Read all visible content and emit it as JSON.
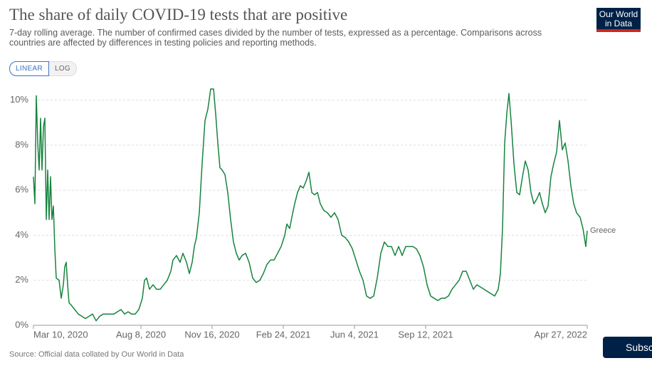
{
  "chart_data": {
    "type": "line",
    "title": "The share of daily COVID-19 tests that are positive",
    "subtitle": "7-day rolling average. The number of confirmed cases divided by the number of tests, expressed as a percentage. Comparisons across countries are affected by differences in testing policies and reporting methods.",
    "x": [
      "2020-03-10",
      "2020-03-12",
      "2020-03-14",
      "2020-03-16",
      "2020-03-18",
      "2020-03-20",
      "2020-03-22",
      "2020-03-24",
      "2020-03-26",
      "2020-03-28",
      "2020-03-30",
      "2020-04-01",
      "2020-04-03",
      "2020-04-05",
      "2020-04-07",
      "2020-04-09",
      "2020-04-11",
      "2020-04-15",
      "2020-04-18",
      "2020-04-21",
      "2020-04-23",
      "2020-04-25",
      "2020-04-27",
      "2020-04-29",
      "2020-05-02",
      "2020-05-07",
      "2020-05-12",
      "2020-05-17",
      "2020-05-22",
      "2020-05-27",
      "2020-06-01",
      "2020-06-06",
      "2020-06-11",
      "2020-06-16",
      "2020-06-21",
      "2020-06-26",
      "2020-07-01",
      "2020-07-06",
      "2020-07-11",
      "2020-07-16",
      "2020-07-21",
      "2020-07-26",
      "2020-07-31",
      "2020-08-05",
      "2020-08-10",
      "2020-08-13",
      "2020-08-16",
      "2020-08-20",
      "2020-08-25",
      "2020-08-30",
      "2020-09-04",
      "2020-09-09",
      "2020-09-14",
      "2020-09-19",
      "2020-09-22",
      "2020-09-27",
      "2020-10-02",
      "2020-10-06",
      "2020-10-11",
      "2020-10-15",
      "2020-10-19",
      "2020-10-22",
      "2020-10-25",
      "2020-10-29",
      "2020-11-02",
      "2020-11-06",
      "2020-11-10",
      "2020-11-14",
      "2020-11-18",
      "2020-11-21",
      "2020-11-24",
      "2020-11-27",
      "2020-11-30",
      "2020-12-04",
      "2020-12-08",
      "2020-12-12",
      "2020-12-16",
      "2020-12-20",
      "2020-12-24",
      "2020-12-28",
      "2021-01-02",
      "2021-01-07",
      "2021-01-12",
      "2021-01-17",
      "2021-01-22",
      "2021-01-27",
      "2021-02-01",
      "2021-02-06",
      "2021-02-11",
      "2021-02-16",
      "2021-02-21",
      "2021-02-26",
      "2021-03-01",
      "2021-03-05",
      "2021-03-08",
      "2021-03-12",
      "2021-03-16",
      "2021-03-20",
      "2021-03-24",
      "2021-03-28",
      "2021-04-01",
      "2021-04-05",
      "2021-04-09",
      "2021-04-13",
      "2021-04-17",
      "2021-04-22",
      "2021-04-27",
      "2021-05-02",
      "2021-05-07",
      "2021-05-12",
      "2021-05-17",
      "2021-05-22",
      "2021-05-27",
      "2021-06-01",
      "2021-06-06",
      "2021-06-11",
      "2021-06-16",
      "2021-06-21",
      "2021-06-26",
      "2021-07-01",
      "2021-07-06",
      "2021-07-11",
      "2021-07-16",
      "2021-07-21",
      "2021-07-26",
      "2021-07-31",
      "2021-08-05",
      "2021-08-10",
      "2021-08-15",
      "2021-08-20",
      "2021-08-25",
      "2021-08-30",
      "2021-09-04",
      "2021-09-09",
      "2021-09-14",
      "2021-09-19",
      "2021-09-24",
      "2021-09-29",
      "2021-10-04",
      "2021-10-09",
      "2021-10-14",
      "2021-10-19",
      "2021-10-24",
      "2021-10-29",
      "2021-11-03",
      "2021-11-08",
      "2021-11-13",
      "2021-11-18",
      "2021-11-23",
      "2021-11-28",
      "2021-12-03",
      "2021-12-08",
      "2021-12-13",
      "2021-12-18",
      "2021-12-23",
      "2021-12-26",
      "2021-12-29",
      "2022-01-01",
      "2022-01-04",
      "2022-01-07",
      "2022-01-10",
      "2022-01-14",
      "2022-01-18",
      "2022-01-22",
      "2022-01-26",
      "2022-01-30",
      "2022-02-03",
      "2022-02-07",
      "2022-02-11",
      "2022-02-15",
      "2022-02-19",
      "2022-02-23",
      "2022-02-27",
      "2022-03-03",
      "2022-03-07",
      "2022-03-11",
      "2022-03-15",
      "2022-03-19",
      "2022-03-23",
      "2022-03-27",
      "2022-03-31",
      "2022-04-04",
      "2022-04-08",
      "2022-04-12",
      "2022-04-17",
      "2022-04-21",
      "2022-04-25",
      "2022-04-27"
    ],
    "series": [
      {
        "name": "Greece",
        "color": "#16843e",
        "values": [
          6.6,
          5.4,
          10.2,
          8.1,
          6.9,
          9.2,
          6.9,
          8.8,
          9.2,
          4.7,
          6.9,
          4.7,
          6.6,
          4.7,
          5.3,
          3.4,
          2.1,
          2.0,
          1.2,
          1.8,
          2.6,
          2.8,
          1.8,
          1.0,
          0.9,
          0.7,
          0.5,
          0.4,
          0.3,
          0.4,
          0.5,
          0.2,
          0.4,
          0.5,
          0.5,
          0.5,
          0.5,
          0.6,
          0.7,
          0.5,
          0.6,
          0.5,
          0.5,
          0.7,
          1.2,
          2.0,
          2.1,
          1.6,
          1.8,
          1.6,
          1.6,
          1.8,
          2.0,
          2.4,
          2.9,
          3.1,
          2.8,
          3.2,
          2.8,
          2.3,
          2.8,
          3.5,
          3.9,
          5.0,
          7.2,
          9.1,
          9.6,
          10.5,
          10.5,
          9.4,
          8.1,
          7.0,
          6.9,
          6.7,
          5.9,
          4.7,
          3.7,
          3.2,
          2.9,
          3.1,
          3.2,
          2.8,
          2.1,
          1.9,
          2.0,
          2.3,
          2.7,
          2.9,
          2.9,
          3.2,
          3.5,
          4.0,
          4.5,
          4.3,
          4.8,
          5.4,
          5.9,
          6.2,
          6.1,
          6.4,
          6.8,
          5.9,
          5.8,
          5.9,
          5.4,
          5.1,
          5.0,
          4.8,
          5.0,
          4.7,
          4.0,
          3.9,
          3.7,
          3.4,
          2.9,
          2.4,
          2.0,
          1.3,
          1.2,
          1.3,
          2.1,
          3.2,
          3.7,
          3.5,
          3.5,
          3.1,
          3.5,
          3.1,
          3.5,
          3.5,
          3.5,
          3.4,
          3.1,
          2.6,
          1.8,
          1.3,
          1.2,
          1.1,
          1.2,
          1.2,
          1.3,
          1.6,
          1.8,
          2.0,
          2.4,
          2.4,
          2.0,
          1.6,
          1.8,
          1.7,
          1.6,
          1.5,
          1.4,
          1.3,
          1.6,
          2.3,
          4.3,
          8.1,
          9.4,
          10.3,
          9.1,
          7.2,
          5.9,
          5.8,
          6.6,
          7.3,
          6.9,
          5.9,
          5.4,
          5.6,
          5.9,
          5.4,
          5.0,
          5.3,
          6.6,
          7.2,
          7.7,
          9.1,
          7.8,
          8.1,
          7.3,
          6.2,
          5.4,
          5.0,
          4.8,
          4.3,
          3.5,
          4.2
        ]
      }
    ],
    "xlim": [
      "2020-03-10",
      "2022-04-27"
    ],
    "xticks": [
      {
        "value": "2020-03-10",
        "label": "Mar 10, 2020"
      },
      {
        "value": "2020-08-08",
        "label": "Aug 8, 2020"
      },
      {
        "value": "2020-11-16",
        "label": "Nov 16, 2020"
      },
      {
        "value": "2021-02-24",
        "label": "Feb 24, 2021"
      },
      {
        "value": "2021-06-04",
        "label": "Jun 4, 2021"
      },
      {
        "value": "2021-09-12",
        "label": "Sep 12, 2021"
      },
      {
        "value": "2022-04-27",
        "label": "Apr 27, 2022"
      }
    ],
    "ylim": [
      0,
      10.5
    ],
    "yticks": [
      {
        "value": 0,
        "label": "0%"
      },
      {
        "value": 2,
        "label": "2%"
      },
      {
        "value": 4,
        "label": "4%"
      },
      {
        "value": 6,
        "label": "6%"
      },
      {
        "value": 8,
        "label": "8%"
      },
      {
        "value": 10,
        "label": "10%"
      }
    ],
    "grid": true,
    "source": "Source: Official data collated by Our World in Data"
  },
  "controls": {
    "linear": "LINEAR",
    "log": "LOG",
    "subscribe": "Subscribe"
  },
  "logo": {
    "line1": "Our World",
    "line2": "in Data"
  }
}
